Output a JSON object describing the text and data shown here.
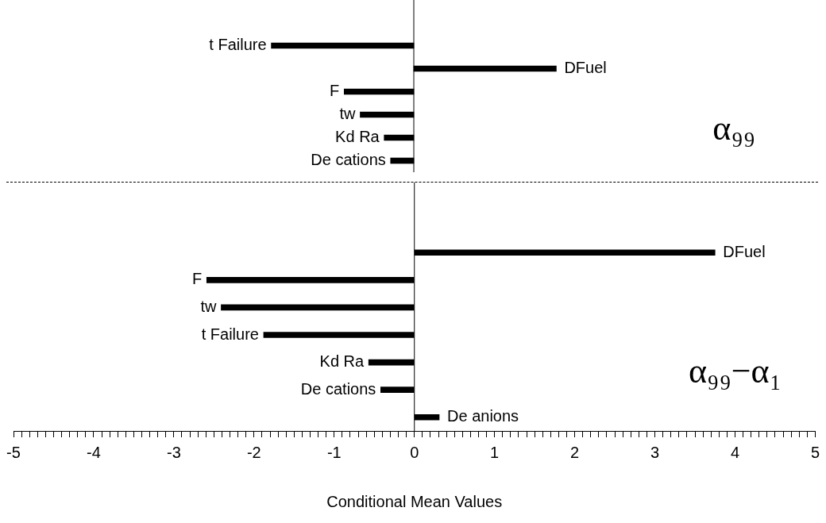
{
  "chart_data": [
    {
      "type": "bar",
      "orientation": "horizontal",
      "categories": [
        "t Failure",
        "DFuel",
        "F",
        "tw",
        "Kd Ra",
        "De cations"
      ],
      "values": [
        -1.78,
        1.78,
        -0.87,
        -0.67,
        -0.37,
        -0.29
      ],
      "color": "#000000",
      "xlim": [
        -5,
        5
      ],
      "tick_labels": false,
      "annotations": [
        "α₉₉"
      ]
    },
    {
      "type": "bar",
      "orientation": "horizontal",
      "categories": [
        "DFuel",
        "F",
        "tw",
        "t Failure",
        "Kd Ra",
        "De cations",
        "De anions"
      ],
      "values": [
        3.75,
        -2.59,
        -2.41,
        -1.88,
        -0.57,
        -0.42,
        0.31
      ],
      "color": "#000000",
      "xlim": [
        -5,
        5
      ],
      "tick_labels": "x",
      "xlabel": "Conditional Mean Values",
      "annotations": [
        "α₉₉−α₁"
      ],
      "xticks": [
        -5,
        {
          "value": -4.9,
          "label": null
        },
        {
          "value": -4.8,
          "label": null
        },
        {
          "value": -4.7,
          "label": null
        },
        {
          "value": -4.6,
          "label": null
        },
        {
          "value": -4.5,
          "label": null
        },
        {
          "value": -4.4,
          "label": null
        },
        {
          "value": -4.3,
          "label": null
        },
        {
          "value": -4.2,
          "label": null
        },
        {
          "value": -4.1,
          "label": null
        },
        -4,
        {
          "value": -3.9,
          "label": null
        },
        {
          "value": -3.8,
          "label": null
        },
        {
          "value": -3.7,
          "label": null
        },
        {
          "value": -3.6,
          "label": null
        },
        {
          "value": -3.5,
          "label": null
        },
        {
          "value": -3.4,
          "label": null
        },
        {
          "value": -3.3,
          "label": null
        },
        {
          "value": -3.2,
          "label": null
        },
        {
          "value": -3.1,
          "label": null
        },
        -3,
        {
          "value": -2.9,
          "label": null
        },
        {
          "value": -2.8,
          "label": null
        },
        {
          "value": -2.7,
          "label": null
        },
        {
          "value": -2.6,
          "label": null
        },
        {
          "value": -2.5,
          "label": null
        },
        {
          "value": -2.4,
          "label": null
        },
        {
          "value": -2.3,
          "label": null
        },
        {
          "value": -2.2,
          "label": null
        },
        {
          "value": -2.1,
          "label": null
        },
        -2,
        {
          "value": -1.9,
          "label": null
        },
        {
          "value": -1.8,
          "label": null
        },
        {
          "value": -1.7,
          "label": null
        },
        {
          "value": -1.6,
          "label": null
        },
        {
          "value": -1.5,
          "label": null
        },
        {
          "value": -1.4,
          "label": null
        },
        {
          "value": -1.3,
          "label": null
        },
        {
          "value": -1.2,
          "label": null
        },
        {
          "value": -1.1,
          "label": null
        },
        -1,
        {
          "value": -0.9,
          "label": null
        },
        {
          "value": -0.8,
          "label": null
        },
        {
          "value": -0.7,
          "label": null
        },
        {
          "value": -0.6,
          "label": null
        },
        {
          "value": -0.5,
          "label": null
        },
        {
          "value": -0.4,
          "label": null
        },
        {
          "value": -0.3,
          "label": null
        },
        {
          "value": -0.2,
          "label": null
        },
        {
          "value": -0.1,
          "label": null
        },
        0,
        {
          "value": 0.1,
          "label": null
        },
        {
          "value": 0.2,
          "label": null
        },
        {
          "value": 0.3,
          "label": null
        },
        {
          "value": 0.4,
          "label": null
        },
        {
          "value": 0.5,
          "label": null
        },
        {
          "value": 0.6,
          "label": null
        },
        {
          "value": 0.7,
          "label": null
        },
        {
          "value": 0.8,
          "label": null
        },
        {
          "value": 0.9,
          "label": null
        },
        1,
        {
          "value": 1.1,
          "label": null
        },
        {
          "value": 1.2,
          "label": null
        },
        {
          "value": 1.3,
          "label": null
        },
        {
          "value": 1.4,
          "label": null
        },
        {
          "value": 1.5,
          "label": null
        },
        {
          "value": 1.6,
          "label": null
        },
        {
          "value": 1.7,
          "label": null
        },
        {
          "value": 1.8,
          "label": null
        },
        {
          "value": 1.9,
          "label": null
        },
        2,
        {
          "value": 2.1,
          "label": null
        },
        {
          "value": 2.2,
          "label": null
        },
        {
          "value": 2.3,
          "label": null
        },
        {
          "value": 2.4,
          "label": null
        },
        {
          "value": 2.5,
          "label": null
        },
        {
          "value": 2.6,
          "label": null
        },
        {
          "value": 2.7,
          "label": null
        },
        {
          "value": 2.8,
          "label": null
        },
        {
          "value": 2.9,
          "label": null
        },
        3,
        {
          "value": 3.1,
          "label": null
        },
        {
          "value": 3.2,
          "label": null
        },
        {
          "value": 3.3,
          "label": null
        },
        {
          "value": 3.4,
          "label": null
        },
        {
          "value": 3.5,
          "label": null
        },
        {
          "value": 3.6,
          "label": null
        },
        {
          "value": 3.7,
          "label": null
        },
        {
          "value": 3.8,
          "label": null
        },
        {
          "value": 3.9,
          "label": null
        },
        4,
        {
          "value": 4.1,
          "label": null
        },
        {
          "value": 4.2,
          "label": null
        },
        {
          "value": 4.3,
          "label": null
        },
        {
          "value": 4.4,
          "label": null
        },
        {
          "value": 4.5,
          "label": null
        },
        {
          "value": 4.6,
          "label": null
        },
        {
          "value": 4.7,
          "label": null
        },
        {
          "value": 4.8,
          "label": null
        },
        {
          "value": 4.9,
          "label": null
        },
        5
      ]
    }
  ]
}
